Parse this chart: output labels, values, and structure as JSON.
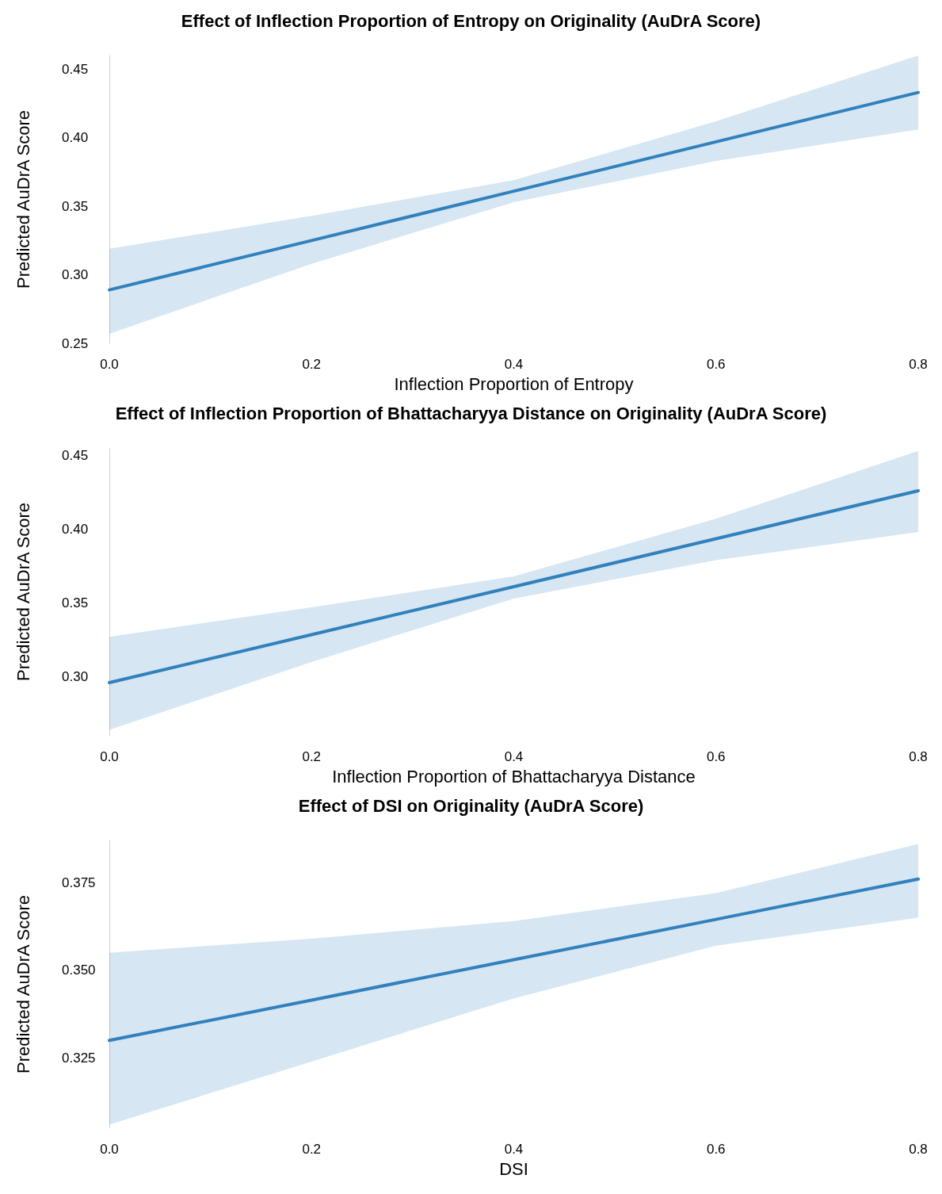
{
  "chart_data": [
    {
      "type": "line",
      "title": "Effect of Inflection Proportion of Entropy on Originality (AuDrA Score)",
      "xlabel": "Inflection Proportion of Entropy",
      "ylabel": "Predicted AuDrA Score",
      "x": [
        0,
        0.2,
        0.4,
        0.6,
        0.8
      ],
      "xlim": [
        0,
        0.8
      ],
      "xticks": [
        {
          "value": 0,
          "label": "0.0"
        },
        {
          "value": 0.2,
          "label": "0.2"
        },
        {
          "value": 0.4,
          "label": "0.4"
        },
        {
          "value": 0.6,
          "label": "0.6"
        },
        {
          "value": 0.8,
          "label": "0.8"
        }
      ],
      "ylim": [
        0.25,
        0.46
      ],
      "yticks": [
        {
          "value": 0.25,
          "label": "0.25"
        },
        {
          "value": 0.3,
          "label": "0.30"
        },
        {
          "value": 0.35,
          "label": "0.35"
        },
        {
          "value": 0.4,
          "label": "0.40"
        },
        {
          "value": 0.45,
          "label": "0.45"
        }
      ],
      "grid": false,
      "series": [
        {
          "color": "#3181bd",
          "values": [
            0.289,
            0.325,
            0.361,
            0.397,
            0.433
          ],
          "lower": [
            0.257,
            0.308,
            0.353,
            0.383,
            0.406
          ],
          "upper": [
            0.319,
            0.343,
            0.369,
            0.412,
            0.46
          ]
        }
      ]
    },
    {
      "type": "line",
      "title": "Effect of Inflection Proportion of Bhattacharyya Distance on Originality (AuDrA Score)",
      "xlabel": "Inflection Proportion of Bhattacharyya Distance",
      "ylabel": "Predicted AuDrA Score",
      "x": [
        0,
        0.2,
        0.4,
        0.6,
        0.8
      ],
      "xlim": [
        0,
        0.8
      ],
      "xticks": [
        {
          "value": 0,
          "label": "0.0"
        },
        {
          "value": 0.2,
          "label": "0.2"
        },
        {
          "value": 0.4,
          "label": "0.4"
        },
        {
          "value": 0.6,
          "label": "0.6"
        },
        {
          "value": 0.8,
          "label": "0.8"
        }
      ],
      "ylim": [
        0.26,
        0.455
      ],
      "yticks": [
        {
          "value": 0.3,
          "label": "0.30"
        },
        {
          "value": 0.35,
          "label": "0.35"
        },
        {
          "value": 0.4,
          "label": "0.40"
        },
        {
          "value": 0.45,
          "label": "0.45"
        }
      ],
      "grid": false,
      "series": [
        {
          "color": "#3181bd",
          "values": [
            0.296,
            0.3285,
            0.361,
            0.3935,
            0.426
          ],
          "lower": [
            0.264,
            0.31,
            0.353,
            0.379,
            0.398
          ],
          "upper": [
            0.327,
            0.347,
            0.368,
            0.407,
            0.453
          ]
        }
      ]
    },
    {
      "type": "line",
      "title": "Effect of DSI on Originality (AuDrA Score)",
      "xlabel": "DSI",
      "ylabel": "Predicted AuDrA Score",
      "x": [
        0,
        0.2,
        0.4,
        0.6,
        0.8
      ],
      "xlim": [
        0,
        0.8
      ],
      "xticks": [
        {
          "value": 0,
          "label": "0.0"
        },
        {
          "value": 0.2,
          "label": "0.2"
        },
        {
          "value": 0.4,
          "label": "0.4"
        },
        {
          "value": 0.6,
          "label": "0.6"
        },
        {
          "value": 0.8,
          "label": "0.8"
        }
      ],
      "ylim": [
        0.305,
        0.387
      ],
      "yticks": [
        {
          "value": 0.325,
          "label": "0.325"
        },
        {
          "value": 0.35,
          "label": "0.350"
        },
        {
          "value": 0.375,
          "label": "0.375"
        }
      ],
      "grid": false,
      "series": [
        {
          "color": "#3181bd",
          "values": [
            0.33,
            0.3415,
            0.353,
            0.3645,
            0.376
          ],
          "lower": [
            0.306,
            0.324,
            0.342,
            0.357,
            0.365
          ],
          "upper": [
            0.355,
            0.359,
            0.364,
            0.372,
            0.386
          ]
        }
      ]
    }
  ]
}
